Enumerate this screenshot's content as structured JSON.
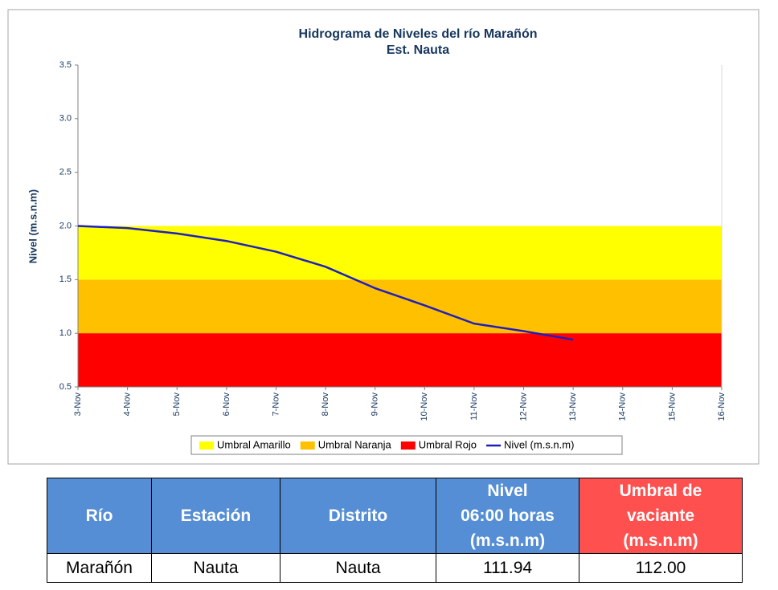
{
  "chart_data": {
    "type": "line",
    "title": [
      "Hidrograma de Niveles del río Marañón",
      "Est. Nauta"
    ],
    "ylabel": "Nivel (m.s.n.m)",
    "categories": [
      "3-Nov",
      "4-Nov",
      "5-Nov",
      "6-Nov",
      "7-Nov",
      "8-Nov",
      "9-Nov",
      "10-Nov",
      "11-Nov",
      "12-Nov",
      "13-Nov",
      "14-Nov",
      "15-Nov",
      "16-Nov"
    ],
    "series": [
      {
        "name": "Umbral Amarillo",
        "color": "#ffff00",
        "type": "area",
        "values": [
          0.5,
          0.5,
          0.5,
          0.5,
          0.5,
          0.5,
          0.5,
          0.5,
          0.5,
          0.5,
          0.5,
          0.5,
          0.5,
          0.5
        ]
      },
      {
        "name": "Umbral Naranja",
        "color": "#ffc000",
        "type": "area",
        "values": [
          0.5,
          0.5,
          0.5,
          0.5,
          0.5,
          0.5,
          0.5,
          0.5,
          0.5,
          0.5,
          0.5,
          0.5,
          0.5,
          0.5
        ]
      },
      {
        "name": "Umbral Rojo",
        "color": "#ff0000",
        "type": "area",
        "values": [
          1.0,
          1.0,
          1.0,
          1.0,
          1.0,
          1.0,
          1.0,
          1.0,
          1.0,
          1.0,
          1.0,
          1.0,
          1.0,
          1.0
        ]
      },
      {
        "name": "Nivel (m.s.n.m)",
        "color": "#1f1fbf",
        "type": "line",
        "values": [
          2.0,
          1.98,
          1.93,
          1.86,
          1.76,
          1.62,
          1.42,
          1.26,
          1.09,
          1.02,
          0.94,
          null,
          null,
          null
        ]
      }
    ],
    "ylim": [
      0.5,
      3.5
    ],
    "yticks": [
      0.5,
      {
        "value": 1.0,
        "label": "1.0"
      },
      1.5,
      {
        "value": 2.0,
        "label": "2.0"
      },
      2.5,
      {
        "value": 3.0,
        "label": "3.0"
      },
      3.5
    ],
    "legend": "bottom"
  },
  "table": {
    "header": [
      "Río",
      "Estación",
      "Distrito",
      "Nivel\n06:00 horas\n(m.s.n.m)",
      "Umbral de\nvaciante\n(m.s.n.m)"
    ],
    "rows": [
      [
        "Marañón",
        "Nauta",
        "Nauta",
        "111.94",
        "112.00"
      ]
    ]
  }
}
